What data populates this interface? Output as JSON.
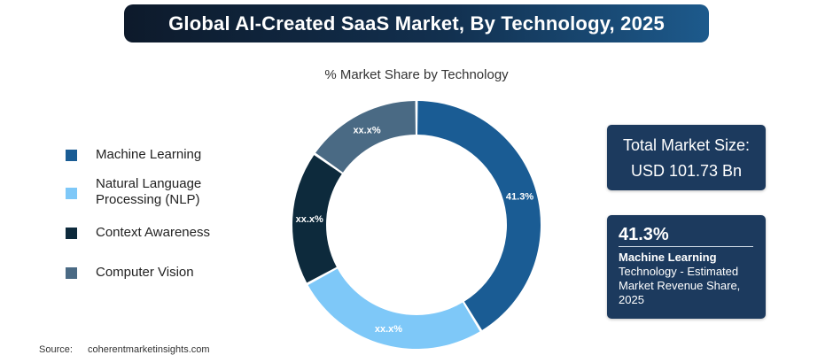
{
  "title": "Global AI-Created SaaS Market, By Technology, 2025",
  "chart_data": {
    "type": "pie",
    "donut": true,
    "subtitle": "% Market Share by Technology",
    "categories": [
      "Machine Learning",
      "Natural Language Processing (NLP)",
      "Context Awareness",
      "Computer Vision"
    ],
    "values": [
      41.3,
      25.8,
      17.6,
      15.3
    ],
    "slice_labels": [
      "41.3%",
      "xx.x%",
      "xx.x%",
      "xx.x%"
    ],
    "colors": [
      "#1a5c94",
      "#7ec8f8",
      "#0d2a3c",
      "#4a6a84"
    ],
    "legend_placement": "left"
  },
  "legend": [
    {
      "label": "Machine Learning",
      "color": "#1a5c94"
    },
    {
      "label": "Natural Language Processing (NLP)",
      "color": "#7ec8f8"
    },
    {
      "label": "Context Awareness",
      "color": "#0d2a3c"
    },
    {
      "label": "Computer Vision",
      "color": "#4a6a84"
    }
  ],
  "total_box": {
    "line1": "Total Market Size:",
    "line2": "USD 101.73 Bn"
  },
  "share_box": {
    "value": "41.3%",
    "bold_text": "Machine Learning",
    "text": "Technology - Estimated Market Revenue Share, 2025"
  },
  "source": {
    "label": "Source:",
    "value": "coherentmarketinsights.com"
  }
}
